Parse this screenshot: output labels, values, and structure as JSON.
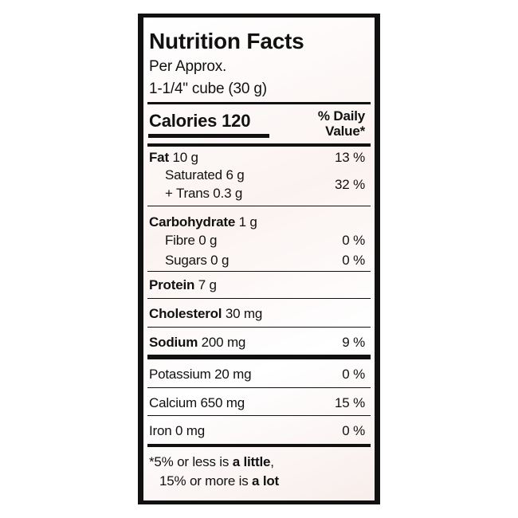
{
  "header": {
    "title": "Nutrition Facts",
    "serving": [
      "Per Approx.",
      "1-1/4\" cube (30 g)"
    ]
  },
  "calories": "Calories 120",
  "dv_header": [
    "% Daily",
    "Value*"
  ],
  "nutrients": [
    {
      "name": "Fat",
      "amount": "10 g",
      "dv": "13 %"
    },
    {
      "lines": [
        "Saturated 6 g",
        "+ Trans 0.3 g"
      ],
      "dv": "32 %"
    },
    {
      "name": "Carbohydrate",
      "amount": "1 g"
    },
    {
      "text": "Fibre 0 g",
      "dv": "0 %"
    },
    {
      "text": "Sugars 0 g",
      "dv": "0 %"
    },
    {
      "name": "Protein",
      "amount": "7 g"
    },
    {
      "name": "Cholesterol",
      "amount": "30 mg"
    },
    {
      "name": "Sodium",
      "amount": "200 mg",
      "dv": "9 %"
    },
    {
      "text": "Potassium 20 mg",
      "dv": "0 %"
    },
    {
      "text": "Calcium 650 mg",
      "dv": "15 %"
    },
    {
      "text": "Iron 0 mg",
      "dv": "0 %"
    }
  ],
  "footnote": [
    {
      "text": "*5% or less is ",
      "bold": "a little",
      "end": ","
    },
    {
      "text": "15% or more is ",
      "bold": "a lot"
    }
  ]
}
